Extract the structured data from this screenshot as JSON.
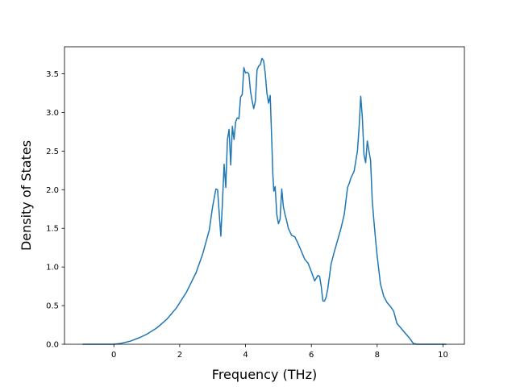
{
  "chart_data": {
    "type": "line",
    "title": "",
    "xlabel": "Frequency (THz)",
    "ylabel": "Density of States",
    "xlim": [
      -1.5,
      10.65
    ],
    "ylim": [
      0,
      3.85
    ],
    "xticks": [
      0,
      2,
      4,
      6,
      8,
      10
    ],
    "xtick_labels": [
      "0",
      "2",
      "4",
      "6",
      "8",
      "10"
    ],
    "yticks": [
      0,
      0.5,
      1.0,
      1.5,
      2.0,
      2.5,
      3.0,
      3.5
    ],
    "ytick_labels": [
      "0.0",
      "0.5",
      "1.0",
      "1.5",
      "2.0",
      "2.5",
      "3.0",
      "3.5"
    ],
    "grid": false,
    "legend": false,
    "series": [
      {
        "color": "#1f77b4",
        "x": [
          -0.95,
          -0.5,
          0.0,
          0.2,
          0.5,
          0.8,
          1.0,
          1.3,
          1.6,
          1.9,
          2.2,
          2.5,
          2.7,
          2.9,
          3.0,
          3.1,
          3.15,
          3.25,
          3.3,
          3.35,
          3.4,
          3.45,
          3.5,
          3.55,
          3.6,
          3.65,
          3.7,
          3.75,
          3.8,
          3.85,
          3.9,
          3.95,
          4.0,
          4.05,
          4.1,
          4.15,
          4.2,
          4.25,
          4.3,
          4.35,
          4.4,
          4.45,
          4.5,
          4.55,
          4.6,
          4.65,
          4.7,
          4.75,
          4.8,
          4.83,
          4.86,
          4.9,
          4.95,
          5.0,
          5.05,
          5.1,
          5.15,
          5.2,
          5.25,
          5.3,
          5.4,
          5.5,
          5.6,
          5.7,
          5.8,
          5.9,
          6.0,
          6.1,
          6.2,
          6.25,
          6.3,
          6.35,
          6.4,
          6.45,
          6.5,
          6.55,
          6.6,
          6.7,
          6.8,
          6.9,
          7.0,
          7.1,
          7.15,
          7.2,
          7.3,
          7.4,
          7.45,
          7.5,
          7.55,
          7.6,
          7.65,
          7.7,
          7.75,
          7.8,
          7.85,
          7.9,
          7.95,
          8.0,
          8.1,
          8.2,
          8.3,
          8.4,
          8.5,
          8.6,
          8.7,
          8.8,
          8.9,
          9.0,
          9.1,
          9.2,
          9.5,
          10.1
        ],
        "y": [
          0.0,
          0.0,
          0.0,
          0.01,
          0.04,
          0.09,
          0.13,
          0.21,
          0.32,
          0.47,
          0.67,
          0.93,
          1.17,
          1.48,
          1.78,
          2.01,
          2.0,
          1.4,
          1.85,
          2.33,
          2.03,
          2.65,
          2.78,
          2.32,
          2.82,
          2.65,
          2.88,
          2.93,
          2.92,
          3.2,
          3.23,
          3.58,
          3.51,
          3.52,
          3.5,
          3.28,
          3.15,
          3.05,
          3.15,
          3.55,
          3.6,
          3.62,
          3.7,
          3.67,
          3.5,
          3.25,
          3.12,
          3.22,
          2.6,
          2.2,
          1.98,
          2.04,
          1.68,
          1.56,
          1.62,
          2.01,
          1.78,
          1.68,
          1.6,
          1.5,
          1.41,
          1.39,
          1.3,
          1.2,
          1.1,
          1.05,
          0.94,
          0.82,
          0.89,
          0.88,
          0.75,
          0.56,
          0.56,
          0.61,
          0.72,
          0.88,
          1.04,
          1.2,
          1.35,
          1.5,
          1.68,
          2.03,
          2.08,
          2.15,
          2.24,
          2.5,
          2.8,
          3.21,
          2.93,
          2.45,
          2.35,
          2.63,
          2.5,
          2.38,
          1.86,
          1.6,
          1.36,
          1.14,
          0.78,
          0.62,
          0.54,
          0.49,
          0.43,
          0.27,
          0.22,
          0.17,
          0.12,
          0.07,
          0.01,
          0.0,
          0.0,
          0.0
        ]
      }
    ]
  }
}
